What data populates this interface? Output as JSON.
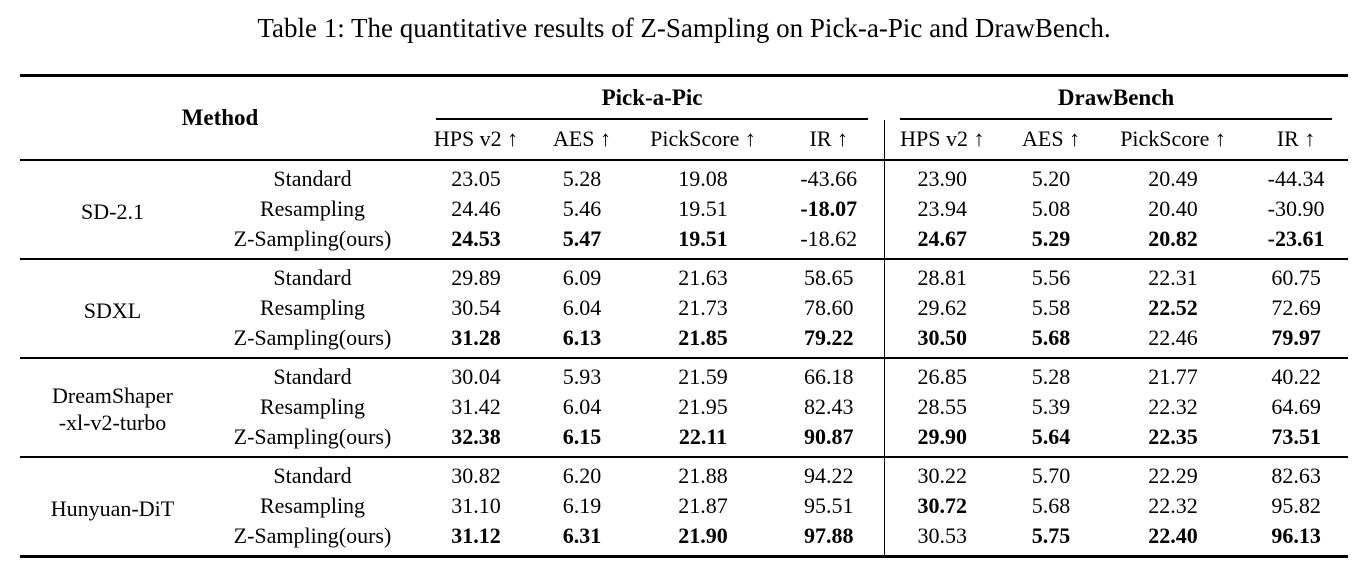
{
  "page": {
    "background_color": "#ffffff",
    "text_color": "#000000"
  },
  "title": "Table 1: The quantitative results of Z-Sampling on Pick-a-Pic and DrawBench.",
  "table": {
    "method_header": "Method",
    "groups": [
      {
        "label": "Pick-a-Pic",
        "columns": [
          "HPS v2 ↑",
          "AES ↑",
          "PickScore ↑",
          "IR ↑"
        ]
      },
      {
        "label": "DrawBench",
        "columns": [
          "HPS v2 ↑",
          "AES ↑",
          "PickScore ↑",
          "IR ↑"
        ]
      }
    ],
    "blocks": [
      {
        "model": "SD-2.1",
        "rows": [
          {
            "variant": "Standard",
            "values": [
              "23.05",
              "5.28",
              "19.08",
              "-43.66",
              "23.90",
              "5.20",
              "20.49",
              "-44.34"
            ],
            "bold": [
              0,
              0,
              0,
              0,
              0,
              0,
              0,
              0
            ]
          },
          {
            "variant": "Resampling",
            "values": [
              "24.46",
              "5.46",
              "19.51",
              "-18.07",
              "23.94",
              "5.08",
              "20.40",
              "-30.90"
            ],
            "bold": [
              0,
              0,
              0,
              1,
              0,
              0,
              0,
              0
            ]
          },
          {
            "variant": "Z-Sampling(ours)",
            "values": [
              "24.53",
              "5.47",
              "19.51",
              "-18.62",
              "24.67",
              "5.29",
              "20.82",
              "-23.61"
            ],
            "bold": [
              1,
              1,
              1,
              0,
              1,
              1,
              1,
              1
            ]
          }
        ]
      },
      {
        "model": "SDXL",
        "rows": [
          {
            "variant": "Standard",
            "values": [
              "29.89",
              "6.09",
              "21.63",
              "58.65",
              "28.81",
              "5.56",
              "22.31",
              "60.75"
            ],
            "bold": [
              0,
              0,
              0,
              0,
              0,
              0,
              0,
              0
            ]
          },
          {
            "variant": "Resampling",
            "values": [
              "30.54",
              "6.04",
              "21.73",
              "78.60",
              "29.62",
              "5.58",
              "22.52",
              "72.69"
            ],
            "bold": [
              0,
              0,
              0,
              0,
              0,
              0,
              1,
              0
            ]
          },
          {
            "variant": "Z-Sampling(ours)",
            "values": [
              "31.28",
              "6.13",
              "21.85",
              "79.22",
              "30.50",
              "5.68",
              "22.46",
              "79.97"
            ],
            "bold": [
              1,
              1,
              1,
              1,
              1,
              1,
              0,
              1
            ]
          }
        ]
      },
      {
        "model": "DreamShaper\n-xl-v2-turbo",
        "rows": [
          {
            "variant": "Standard",
            "values": [
              "30.04",
              "5.93",
              "21.59",
              "66.18",
              "26.85",
              "5.28",
              "21.77",
              "40.22"
            ],
            "bold": [
              0,
              0,
              0,
              0,
              0,
              0,
              0,
              0
            ]
          },
          {
            "variant": "Resampling",
            "values": [
              "31.42",
              "6.04",
              "21.95",
              "82.43",
              "28.55",
              "5.39",
              "22.32",
              "64.69"
            ],
            "bold": [
              0,
              0,
              0,
              0,
              0,
              0,
              0,
              0
            ]
          },
          {
            "variant": "Z-Sampling(ours)",
            "values": [
              "32.38",
              "6.15",
              "22.11",
              "90.87",
              "29.90",
              "5.64",
              "22.35",
              "73.51"
            ],
            "bold": [
              1,
              1,
              1,
              1,
              1,
              1,
              1,
              1
            ]
          }
        ]
      },
      {
        "model": "Hunyuan-DiT",
        "rows": [
          {
            "variant": "Standard",
            "values": [
              "30.82",
              "6.20",
              "21.88",
              "94.22",
              "30.22",
              "5.70",
              "22.29",
              "82.63"
            ],
            "bold": [
              0,
              0,
              0,
              0,
              0,
              0,
              0,
              0
            ]
          },
          {
            "variant": "Resampling",
            "values": [
              "31.10",
              "6.19",
              "21.87",
              "95.51",
              "30.72",
              "5.68",
              "22.32",
              "95.82"
            ],
            "bold": [
              0,
              0,
              0,
              0,
              1,
              0,
              0,
              0
            ]
          },
          {
            "variant": "Z-Sampling(ours)",
            "values": [
              "31.12",
              "6.31",
              "21.90",
              "97.88",
              "30.53",
              "5.75",
              "22.40",
              "96.13"
            ],
            "bold": [
              1,
              1,
              1,
              1,
              0,
              1,
              1,
              1
            ]
          }
        ]
      }
    ]
  }
}
